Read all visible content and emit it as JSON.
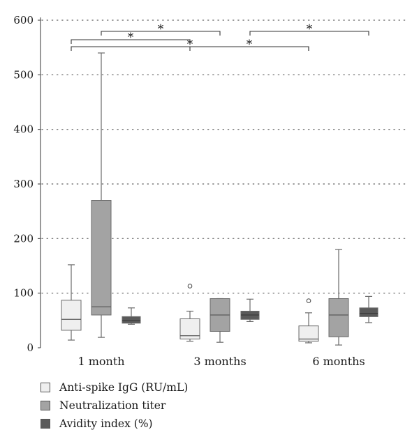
{
  "chart_data": {
    "type": "box",
    "categories": [
      "1 month",
      "3 months",
      "6 months"
    ],
    "ylim": [
      0,
      600
    ],
    "yticks": [
      0,
      100,
      200,
      300,
      400,
      500,
      600
    ],
    "grid": "horizontal-dotted",
    "legend_placement": "bottom-left",
    "series": [
      {
        "name": "Anti-spike IgG (RU/mL)",
        "color": "#efefef",
        "boxes": [
          {
            "min": 14,
            "q1": 32,
            "median": 52,
            "q3": 87,
            "max": 152,
            "outliers": []
          },
          {
            "min": 12,
            "q1": 16,
            "median": 22,
            "q3": 53,
            "max": 67,
            "outliers": [
              113
            ]
          },
          {
            "min": 9,
            "q1": 12,
            "median": 16,
            "q3": 40,
            "max": 64,
            "outliers": [
              86
            ]
          }
        ]
      },
      {
        "name": "Neutralization titer",
        "color": "#a3a3a3",
        "boxes": [
          {
            "min": 19,
            "q1": 60,
            "median": 75,
            "q3": 270,
            "max": 540,
            "outliers": []
          },
          {
            "min": 10,
            "q1": 30,
            "median": 60,
            "q3": 90,
            "max": 90,
            "outliers": []
          },
          {
            "min": 5,
            "q1": 20,
            "median": 60,
            "q3": 90,
            "max": 180,
            "outliers": []
          }
        ]
      },
      {
        "name": "Avidity index (%)",
        "color": "#5a5a5a",
        "boxes": [
          {
            "min": 43,
            "q1": 45,
            "median": 50,
            "q3": 57,
            "max": 73,
            "outliers": []
          },
          {
            "min": 48,
            "q1": 52,
            "median": 60,
            "q3": 67,
            "max": 89,
            "outliers": []
          },
          {
            "min": 46,
            "q1": 57,
            "median": 63,
            "q3": 73,
            "max": 94,
            "outliers": []
          }
        ]
      }
    ],
    "significance": [
      {
        "from_group": 0,
        "from_series": 1,
        "to_group": 1,
        "to_series": 1,
        "label": "*"
      },
      {
        "from_group": 0,
        "from_series": 0,
        "to_group": 1,
        "to_series": 0,
        "label": "*"
      },
      {
        "from_group": 0,
        "from_series": 0,
        "to_group": 2,
        "to_series": 0,
        "label": "*"
      },
      {
        "from_group": 1,
        "from_series": 0,
        "to_group": 2,
        "to_series": 0,
        "label": "*"
      },
      {
        "from_group": 1,
        "from_series": 2,
        "to_group": 2,
        "to_series": 2,
        "label": "*"
      }
    ]
  }
}
